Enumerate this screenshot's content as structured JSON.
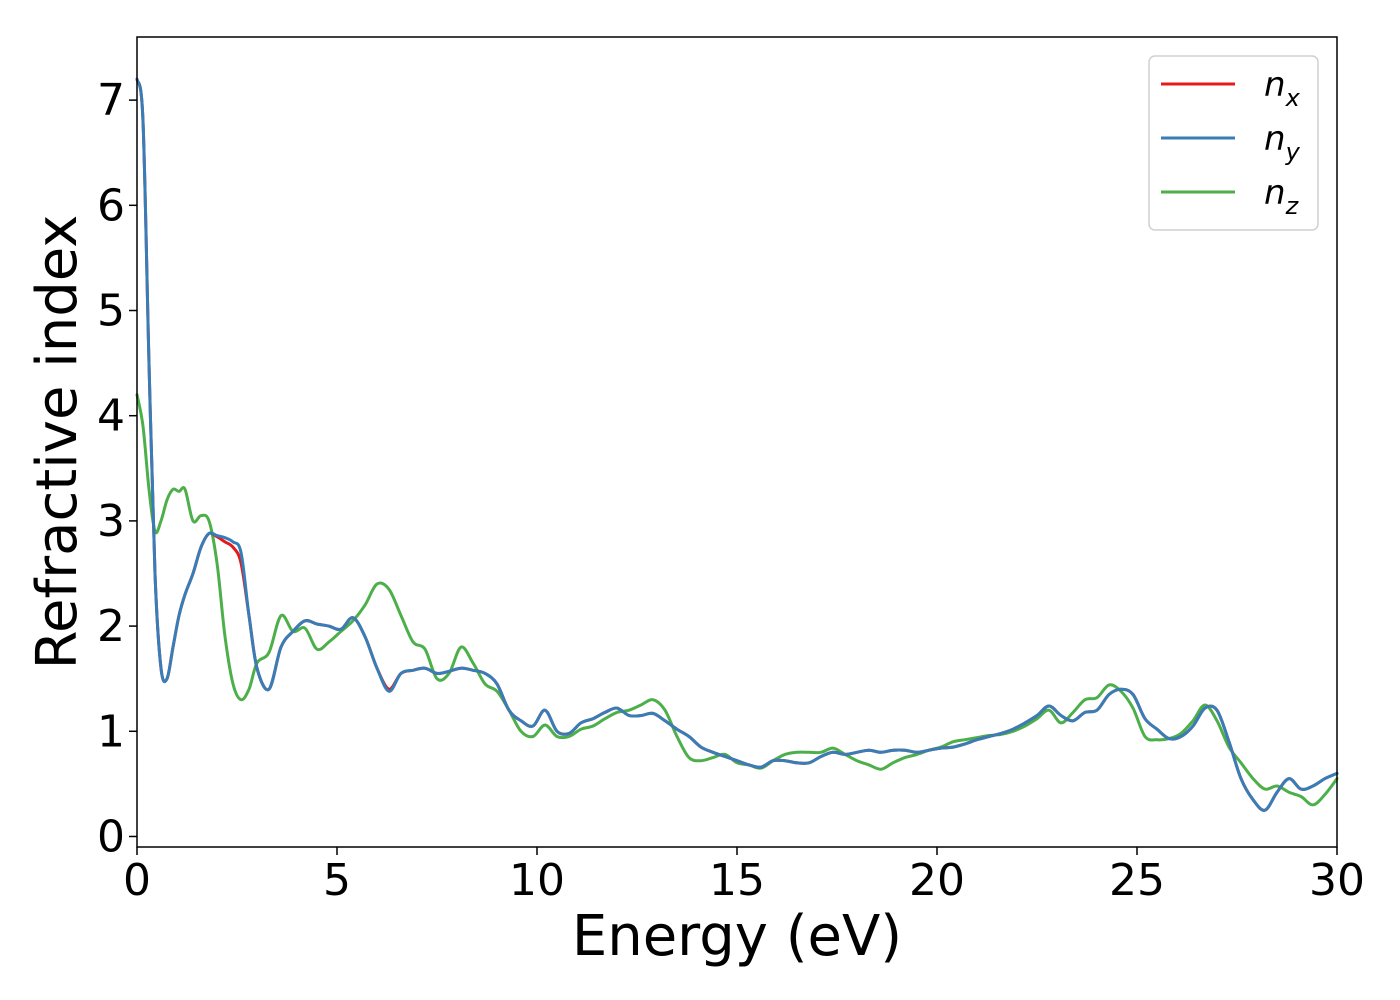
{
  "chart_data": {
    "type": "line",
    "title": "",
    "xlabel": "Energy (eV)",
    "ylabel": "Refractive index",
    "xlim": [
      0,
      30
    ],
    "ylim": [
      -0.1,
      7.6
    ],
    "xticks": [
      0,
      5,
      10,
      15,
      20,
      25,
      30
    ],
    "yticks": [
      0,
      1,
      2,
      3,
      4,
      5,
      6,
      7
    ],
    "grid": false,
    "legend_position": "top-right",
    "series": [
      {
        "name": "n_x",
        "legend_base": "n",
        "legend_sub": "x",
        "color": "#e41a1c",
        "x": [
          0,
          0.15,
          0.3,
          0.45,
          0.6,
          0.75,
          0.9,
          1.05,
          1.2,
          1.4,
          1.6,
          1.8,
          2.0,
          2.2,
          2.4,
          2.6,
          2.8,
          3.0,
          3.3,
          3.6,
          3.9,
          4.2,
          4.5,
          4.8,
          5.1,
          5.4,
          5.7,
          6.0,
          6.3,
          6.6,
          6.9,
          7.2,
          7.5,
          7.8,
          8.1,
          8.4,
          8.7,
          9.0,
          9.3,
          9.6,
          9.9,
          10.2,
          10.5,
          10.8,
          11.1,
          11.4,
          11.7,
          12.0,
          12.3,
          12.6,
          12.9,
          13.2,
          13.5,
          13.8,
          14.1,
          14.4,
          14.7,
          15.0,
          15.3,
          15.6,
          15.9,
          16.2,
          16.5,
          16.8,
          17.1,
          17.4,
          17.7,
          18.0,
          18.3,
          18.6,
          18.9,
          19.2,
          19.5,
          19.8,
          20.1,
          20.4,
          20.7,
          21.0,
          21.3,
          21.6,
          21.9,
          22.2,
          22.5,
          22.8,
          23.1,
          23.4,
          23.7,
          24.0,
          24.3,
          24.6,
          24.9,
          25.2,
          25.5,
          25.8,
          26.1,
          26.4,
          26.7,
          27.0,
          27.3,
          27.6,
          27.9,
          28.2,
          28.5,
          28.8,
          29.1,
          29.4,
          29.7,
          30.0
        ],
        "y": [
          7.2,
          6.8,
          4.5,
          2.5,
          1.6,
          1.5,
          1.8,
          2.1,
          2.3,
          2.5,
          2.75,
          2.88,
          2.85,
          2.8,
          2.75,
          2.6,
          2.1,
          1.6,
          1.4,
          1.8,
          1.95,
          2.05,
          2.02,
          2.0,
          1.97,
          2.08,
          1.9,
          1.6,
          1.4,
          1.55,
          1.58,
          1.6,
          1.55,
          1.57,
          1.6,
          1.58,
          1.55,
          1.45,
          1.2,
          1.1,
          1.05,
          1.2,
          1.0,
          0.98,
          1.08,
          1.12,
          1.18,
          1.22,
          1.15,
          1.15,
          1.17,
          1.1,
          1.02,
          0.95,
          0.85,
          0.8,
          0.76,
          0.72,
          0.68,
          0.66,
          0.72,
          0.72,
          0.7,
          0.7,
          0.76,
          0.8,
          0.78,
          0.8,
          0.82,
          0.8,
          0.82,
          0.82,
          0.8,
          0.82,
          0.84,
          0.85,
          0.88,
          0.92,
          0.95,
          0.98,
          1.02,
          1.08,
          1.15,
          1.24,
          1.15,
          1.1,
          1.18,
          1.2,
          1.35,
          1.4,
          1.35,
          1.12,
          1.02,
          0.93,
          0.95,
          1.05,
          1.22,
          1.2,
          0.9,
          0.55,
          0.35,
          0.25,
          0.42,
          0.55,
          0.45,
          0.48,
          0.55,
          0.6
        ]
      },
      {
        "name": "n_y",
        "legend_base": "n",
        "legend_sub": "y",
        "color": "#377eb8",
        "x": [
          0,
          0.15,
          0.3,
          0.45,
          0.6,
          0.75,
          0.9,
          1.05,
          1.2,
          1.4,
          1.6,
          1.8,
          2.0,
          2.2,
          2.4,
          2.6,
          2.8,
          3.0,
          3.3,
          3.6,
          3.9,
          4.2,
          4.5,
          4.8,
          5.1,
          5.4,
          5.7,
          6.0,
          6.3,
          6.6,
          6.9,
          7.2,
          7.5,
          7.8,
          8.1,
          8.4,
          8.7,
          9.0,
          9.3,
          9.6,
          9.9,
          10.2,
          10.5,
          10.8,
          11.1,
          11.4,
          11.7,
          12.0,
          12.3,
          12.6,
          12.9,
          13.2,
          13.5,
          13.8,
          14.1,
          14.4,
          14.7,
          15.0,
          15.3,
          15.6,
          15.9,
          16.2,
          16.5,
          16.8,
          17.1,
          17.4,
          17.7,
          18.0,
          18.3,
          18.6,
          18.9,
          19.2,
          19.5,
          19.8,
          20.1,
          20.4,
          20.7,
          21.0,
          21.3,
          21.6,
          21.9,
          22.2,
          22.5,
          22.8,
          23.1,
          23.4,
          23.7,
          24.0,
          24.3,
          24.6,
          24.9,
          25.2,
          25.5,
          25.8,
          26.1,
          26.4,
          26.7,
          27.0,
          27.3,
          27.6,
          27.9,
          28.2,
          28.5,
          28.8,
          29.1,
          29.4,
          29.7,
          30.0
        ],
        "y": [
          7.2,
          6.8,
          4.5,
          2.5,
          1.6,
          1.5,
          1.8,
          2.1,
          2.3,
          2.5,
          2.75,
          2.88,
          2.86,
          2.84,
          2.8,
          2.7,
          2.1,
          1.6,
          1.4,
          1.8,
          1.95,
          2.05,
          2.02,
          2.0,
          1.97,
          2.08,
          1.9,
          1.6,
          1.38,
          1.55,
          1.58,
          1.6,
          1.55,
          1.57,
          1.6,
          1.58,
          1.55,
          1.45,
          1.2,
          1.1,
          1.05,
          1.2,
          1.0,
          0.98,
          1.08,
          1.12,
          1.18,
          1.22,
          1.15,
          1.15,
          1.17,
          1.1,
          1.02,
          0.95,
          0.85,
          0.8,
          0.76,
          0.72,
          0.68,
          0.66,
          0.72,
          0.72,
          0.7,
          0.7,
          0.76,
          0.8,
          0.78,
          0.8,
          0.82,
          0.8,
          0.82,
          0.82,
          0.8,
          0.82,
          0.84,
          0.85,
          0.88,
          0.92,
          0.95,
          0.98,
          1.02,
          1.08,
          1.15,
          1.24,
          1.15,
          1.1,
          1.18,
          1.2,
          1.35,
          1.4,
          1.35,
          1.12,
          1.02,
          0.93,
          0.95,
          1.05,
          1.22,
          1.2,
          0.9,
          0.55,
          0.35,
          0.25,
          0.42,
          0.55,
          0.45,
          0.48,
          0.55,
          0.6
        ]
      },
      {
        "name": "n_z",
        "legend_base": "n",
        "legend_sub": "z",
        "color": "#4daf4a",
        "x": [
          0,
          0.15,
          0.3,
          0.45,
          0.6,
          0.75,
          0.9,
          1.05,
          1.2,
          1.4,
          1.6,
          1.8,
          2.0,
          2.2,
          2.4,
          2.6,
          2.8,
          3.0,
          3.3,
          3.6,
          3.9,
          4.2,
          4.5,
          4.8,
          5.1,
          5.4,
          5.7,
          6.0,
          6.3,
          6.6,
          6.9,
          7.2,
          7.5,
          7.8,
          8.1,
          8.4,
          8.7,
          9.0,
          9.3,
          9.6,
          9.9,
          10.2,
          10.5,
          10.8,
          11.1,
          11.4,
          11.7,
          12.0,
          12.3,
          12.6,
          12.9,
          13.2,
          13.5,
          13.8,
          14.1,
          14.4,
          14.7,
          15.0,
          15.3,
          15.6,
          15.9,
          16.2,
          16.5,
          16.8,
          17.1,
          17.4,
          17.7,
          18.0,
          18.3,
          18.6,
          18.9,
          19.2,
          19.5,
          19.8,
          20.1,
          20.4,
          20.7,
          21.0,
          21.3,
          21.6,
          21.9,
          22.2,
          22.5,
          22.8,
          23.1,
          23.4,
          23.7,
          24.0,
          24.3,
          24.6,
          24.9,
          25.2,
          25.5,
          25.8,
          26.1,
          26.4,
          26.7,
          27.0,
          27.3,
          27.6,
          27.9,
          28.2,
          28.5,
          28.8,
          29.1,
          29.4,
          29.7,
          30.0
        ],
        "y": [
          4.2,
          3.9,
          3.3,
          2.9,
          3.0,
          3.2,
          3.3,
          3.28,
          3.3,
          3.0,
          3.05,
          3.0,
          2.6,
          1.9,
          1.45,
          1.3,
          1.4,
          1.65,
          1.75,
          2.1,
          1.95,
          1.98,
          1.78,
          1.85,
          1.95,
          2.05,
          2.2,
          2.4,
          2.35,
          2.1,
          1.85,
          1.78,
          1.5,
          1.55,
          1.8,
          1.65,
          1.45,
          1.38,
          1.2,
          1.0,
          0.95,
          1.06,
          0.95,
          0.95,
          1.02,
          1.05,
          1.12,
          1.18,
          1.2,
          1.25,
          1.3,
          1.2,
          0.95,
          0.75,
          0.72,
          0.75,
          0.78,
          0.7,
          0.68,
          0.65,
          0.72,
          0.78,
          0.8,
          0.8,
          0.8,
          0.84,
          0.78,
          0.72,
          0.68,
          0.64,
          0.7,
          0.75,
          0.78,
          0.82,
          0.85,
          0.9,
          0.92,
          0.94,
          0.96,
          0.97,
          1.0,
          1.05,
          1.12,
          1.2,
          1.08,
          1.18,
          1.3,
          1.32,
          1.44,
          1.38,
          1.22,
          0.95,
          0.92,
          0.93,
          0.98,
          1.1,
          1.25,
          1.1,
          0.85,
          0.7,
          0.55,
          0.45,
          0.48,
          0.42,
          0.38,
          0.3,
          0.4,
          0.55
        ]
      }
    ]
  }
}
